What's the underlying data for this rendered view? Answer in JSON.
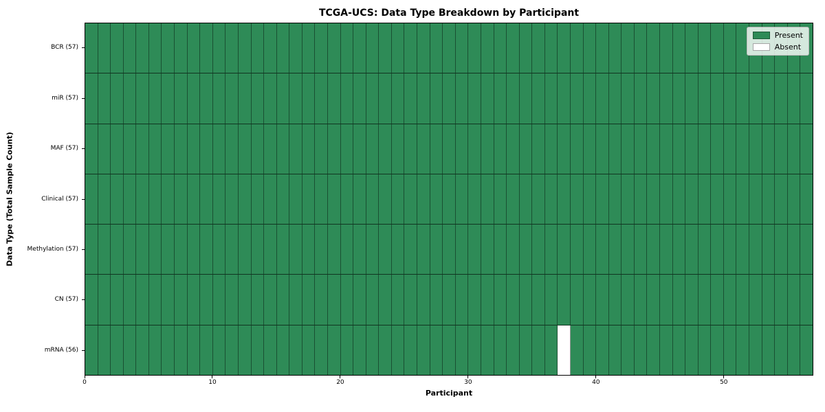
{
  "chart_data": {
    "type": "heatmap",
    "title": "TCGA-UCS: Data Type Breakdown by Participant",
    "xlabel": "Participant",
    "ylabel": "Data Type (Total Sample Count)",
    "n_participants": 57,
    "x_ticks": [
      0,
      10,
      20,
      30,
      40,
      50
    ],
    "rows": [
      {
        "label": "BCR (57)",
        "data_type": "BCR",
        "total_samples": 57,
        "absent_participants": []
      },
      {
        "label": "miR (57)",
        "data_type": "miR",
        "total_samples": 57,
        "absent_participants": []
      },
      {
        "label": "MAF (57)",
        "data_type": "MAF",
        "total_samples": 57,
        "absent_participants": []
      },
      {
        "label": "Clinical (57)",
        "data_type": "Clinical",
        "total_samples": 57,
        "absent_participants": []
      },
      {
        "label": "Methylation (57)",
        "data_type": "Methylation",
        "total_samples": 57,
        "absent_participants": []
      },
      {
        "label": "CN (57)",
        "data_type": "CN",
        "total_samples": 57,
        "absent_participants": []
      },
      {
        "label": "mRNA (56)",
        "data_type": "mRNA",
        "total_samples": 56,
        "absent_participants": [
          37
        ]
      }
    ],
    "legend": {
      "position": "upper right",
      "entries": [
        {
          "label": "Present",
          "color": "#2e8b57"
        },
        {
          "label": "Absent",
          "color": "#ffffff"
        }
      ]
    },
    "colors": {
      "present": "#2e8b57",
      "absent": "#ffffff"
    },
    "grid": true
  }
}
